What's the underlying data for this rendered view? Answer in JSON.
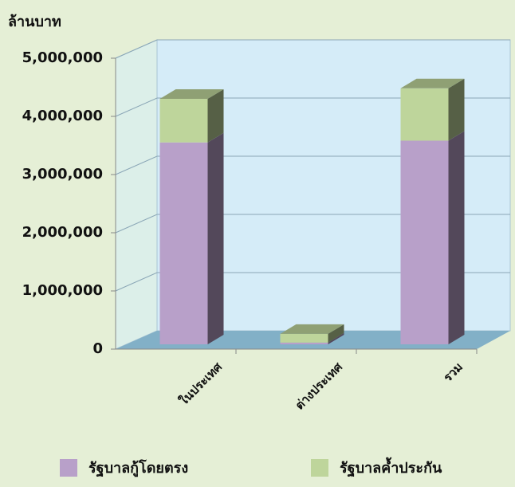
{
  "chart_data": {
    "type": "bar",
    "stacked": true,
    "y_axis_label": "ล้านบาท",
    "categories": [
      "ในประเทศ",
      "ต่างประเทศ",
      "รวม"
    ],
    "series": [
      {
        "name": "รัฐบาลกู้โดยตรง",
        "color": "#b8a0c9",
        "values": [
          3470000,
          30000,
          3500000
        ]
      },
      {
        "name": "รัฐบาลค้ำประกัน",
        "color": "#bed59b",
        "values": [
          750000,
          150000,
          900000
        ]
      }
    ],
    "ylim": [
      0,
      5000000
    ],
    "yticks": [
      0,
      {
        "value": 1000000,
        "label": "1,000,000"
      },
      {
        "value": 2000000,
        "label": "2,000,000"
      },
      {
        "value": 3000000,
        "label": "3,000,000"
      },
      {
        "value": 4000000,
        "label": "4,000,000"
      },
      {
        "value": 5000000,
        "label": "5,000,000"
      }
    ],
    "grid": true
  }
}
